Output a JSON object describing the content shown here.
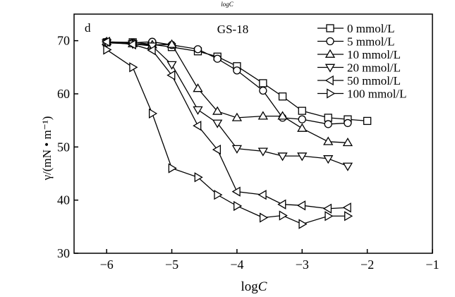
{
  "chart_data": {
    "type": "line",
    "top_caption": "logC",
    "panel_label": "d",
    "title": "GS-18",
    "xlabel": "logC",
    "ylabel": "γ/(mN • m⁻¹)",
    "xlim": [
      -6.5,
      -1
    ],
    "ylim": [
      30,
      75
    ],
    "xticks": [
      -6,
      -5,
      -4,
      -3,
      -2,
      -1
    ],
    "yticks": [
      30,
      40,
      50,
      60,
      70
    ],
    "grid": false,
    "legend_placement": "top-right",
    "series": [
      {
        "name": "0 mmol/L",
        "marker": "square",
        "x": [
          -6,
          -5.6,
          -5.3,
          -5,
          -4.6,
          -4.3,
          -4,
          -3.6,
          -3.3,
          -3,
          -2.6,
          -2.3,
          -2
        ],
        "y": [
          69.7,
          69.7,
          69.3,
          68.8,
          68,
          67,
          65.2,
          62,
          59.5,
          56.8,
          55.5,
          55.2,
          54.9
        ]
      },
      {
        "name": "5 mmol/L",
        "marker": "circle",
        "x": [
          -6,
          -5.6,
          -5.3,
          -5,
          -4.6,
          -4.3,
          -4,
          -3.6,
          -3.3,
          -3,
          -2.6,
          -2.3
        ],
        "y": [
          69.8,
          69.6,
          69.8,
          69.2,
          68.4,
          66.6,
          64.4,
          60.6,
          55.5,
          55.2,
          54.3,
          54.5
        ]
      },
      {
        "name": "10 mmol/L",
        "marker": "triangle-up",
        "x": [
          -6,
          -5.6,
          -5.3,
          -5,
          -4.6,
          -4.3,
          -4,
          -3.6,
          -3.3,
          -3,
          -2.6,
          -2.3
        ],
        "y": [
          69.8,
          69.4,
          69.2,
          69.3,
          61,
          56.7,
          55.5,
          55.8,
          55.8,
          53.5,
          51,
          50.8
        ]
      },
      {
        "name": "20 mmol/L",
        "marker": "triangle-down",
        "x": [
          -6,
          -5.6,
          -5.3,
          -5,
          -4.6,
          -4.3,
          -4,
          -3.6,
          -3.3,
          -3,
          -2.6,
          -2.3
        ],
        "y": [
          69.6,
          69.4,
          69,
          65.5,
          57,
          54.5,
          49.7,
          49.2,
          48.3,
          48.3,
          47.8,
          46.4
        ]
      },
      {
        "name": "50 mmol/L",
        "marker": "triangle-left",
        "x": [
          -6,
          -5.6,
          -5.3,
          -5,
          -4.6,
          -4.3,
          -4,
          -3.6,
          -3.3,
          -3,
          -2.6,
          -2.3
        ],
        "y": [
          69.8,
          69.3,
          68.2,
          63.5,
          54,
          49.5,
          41.6,
          41,
          39.2,
          39,
          38.4,
          38.6
        ]
      },
      {
        "name": "100 mmol/L",
        "marker": "triangle-right",
        "x": [
          -6,
          -5.6,
          -5.3,
          -5,
          -4.6,
          -4.3,
          -4,
          -3.6,
          -3.3,
          -3,
          -2.6,
          -2.3
        ],
        "y": [
          68.3,
          65,
          56.3,
          46,
          44.3,
          41,
          38.9,
          36.7,
          37.1,
          35.5,
          37,
          37
        ]
      }
    ]
  }
}
